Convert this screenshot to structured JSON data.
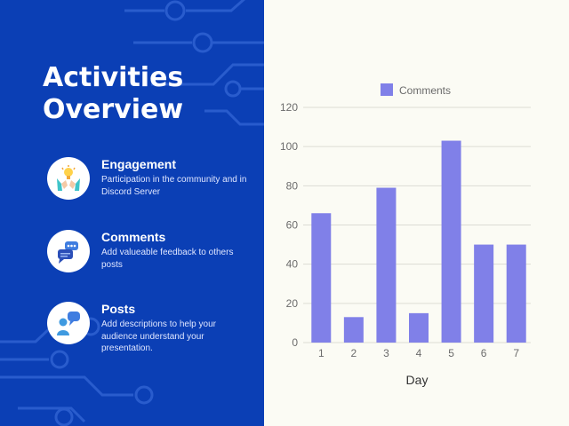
{
  "page": {
    "title_line1": "Activities",
    "title_line2": "Overview"
  },
  "colors": {
    "panel": "#0b3fb5",
    "background": "#fbfbf4",
    "bar": "#8080e8",
    "circuit": "#3366d6"
  },
  "items": [
    {
      "icon": "engagement-icon",
      "title": "Engagement",
      "desc": "Participation in the community and in Discord Server"
    },
    {
      "icon": "comments-icon",
      "title": "Comments",
      "desc": "Add valueable feedback to others posts"
    },
    {
      "icon": "posts-icon",
      "title": "Posts",
      "desc": "Add descriptions to help your audience understand your presentation."
    }
  ],
  "chart_data": {
    "type": "bar",
    "categories": [
      "1",
      "2",
      "3",
      "4",
      "5",
      "6",
      "7"
    ],
    "series": [
      {
        "name": "Comments",
        "values": [
          66,
          13,
          79,
          15,
          103,
          50,
          50
        ]
      }
    ],
    "xlabel": "Day",
    "ylabel": "",
    "ylim": [
      0,
      120
    ],
    "yticks": [
      0,
      20,
      40,
      60,
      80,
      100,
      120
    ],
    "grid": true,
    "legend": "top"
  }
}
